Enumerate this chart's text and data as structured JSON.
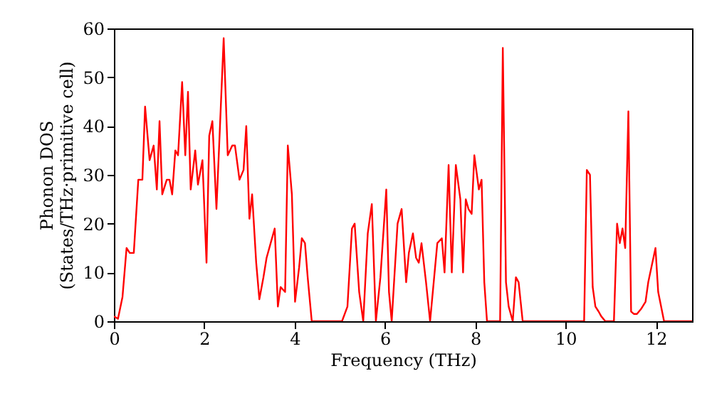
{
  "chart_data": {
    "type": "line",
    "xlabel": "Frequency (THz)",
    "ylabel": "Phonon DOS\n(States/THz·primitive cell)",
    "xlim": [
      0,
      12.8
    ],
    "xticks": [
      0,
      2,
      4,
      6,
      8,
      10,
      12
    ],
    "ylim": [
      0,
      60
    ],
    "yticks": [
      0,
      10,
      20,
      30,
      40,
      50,
      60
    ],
    "grid": false,
    "series": [
      {
        "color": "#ff0000",
        "x": [
          0,
          0.09,
          0.19,
          0.28,
          0.35,
          0.44,
          0.54,
          0.63,
          0.69,
          0.79,
          0.88,
          0.95,
          1.01,
          1.07,
          1.17,
          1.23,
          1.29,
          1.36,
          1.42,
          1.51,
          1.58,
          1.64,
          1.7,
          1.8,
          1.86,
          1.96,
          2.05,
          2.11,
          2.18,
          2.27,
          2.33,
          2.43,
          2.52,
          2.62,
          2.68,
          2.78,
          2.87,
          2.93,
          3.0,
          3.06,
          3.15,
          3.22,
          3.31,
          3.38,
          3.47,
          3.56,
          3.63,
          3.69,
          3.79,
          3.85,
          3.94,
          4.01,
          4.1,
          4.16,
          4.23,
          4.29,
          4.38,
          5.05,
          5.17,
          5.27,
          5.33,
          5.43,
          5.52,
          5.62,
          5.71,
          5.8,
          5.9,
          6.03,
          6.09,
          6.15,
          6.28,
          6.37,
          6.47,
          6.53,
          6.62,
          6.69,
          6.75,
          6.81,
          6.91,
          7.0,
          7.1,
          7.16,
          7.26,
          7.32,
          7.41,
          7.48,
          7.57,
          7.67,
          7.73,
          7.79,
          7.85,
          7.92,
          7.98,
          8.08,
          8.14,
          8.2,
          8.26,
          8.55,
          8.61,
          8.68,
          8.74,
          8.83,
          8.9,
          8.96,
          9.05,
          10.41,
          10.47,
          10.54,
          10.6,
          10.66,
          10.73,
          10.79,
          10.88,
          11.07,
          11.14,
          11.2,
          11.26,
          11.32,
          11.39,
          11.45,
          11.51,
          11.58,
          11.67,
          11.77,
          11.83,
          11.99,
          12.05,
          12.18,
          12.8
        ],
        "values": [
          1,
          0.5,
          5,
          15,
          14,
          14,
          29,
          29,
          44,
          33,
          36,
          27,
          41,
          26,
          29,
          29,
          26,
          35,
          34,
          49,
          34,
          47,
          27,
          35,
          28,
          33,
          12,
          38,
          41,
          23,
          36,
          58,
          34,
          36,
          36,
          29,
          31,
          40,
          21,
          26,
          12,
          4.5,
          9,
          13,
          16,
          19,
          3,
          7,
          6,
          36,
          26,
          4,
          11,
          17,
          16,
          9,
          0,
          0,
          3,
          19,
          20,
          6,
          0,
          18,
          24,
          0,
          9,
          27,
          6,
          0,
          20,
          23,
          8,
          14,
          18,
          13,
          12,
          16,
          8,
          0,
          10,
          16,
          17,
          10,
          32,
          10,
          32,
          25,
          10,
          25,
          23,
          22,
          34,
          27,
          29,
          8,
          0,
          0,
          56,
          8,
          3,
          0,
          9,
          8,
          0,
          0,
          31,
          30,
          7,
          3,
          2,
          1,
          0,
          0,
          20,
          16,
          19,
          15,
          43,
          2,
          1.5,
          1.5,
          2.5,
          4,
          8,
          15,
          6,
          0,
          0
        ]
      }
    ]
  }
}
